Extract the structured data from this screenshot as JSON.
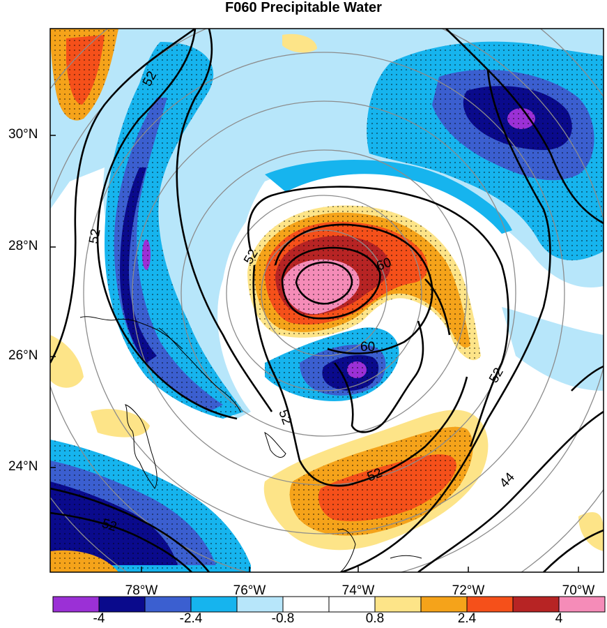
{
  "title": "F060 Precipitable Water",
  "map": {
    "lat_labels": [
      "30°N",
      "28°N",
      "26°N",
      "24°N"
    ],
    "lon_labels": [
      "78°W",
      "76°W",
      "74°W",
      "72°W",
      "70°W"
    ],
    "contour_labels": [
      "52",
      "52",
      "52",
      "60",
      "60",
      "52",
      "52",
      "52",
      "44",
      "52"
    ]
  },
  "colorbar": {
    "colors": [
      "#9b30d6",
      "#0a0a8c",
      "#3b5fd0",
      "#16b4ee",
      "#b7e6fa",
      "#ffffff",
      "#ffffff",
      "#fde488",
      "#f5a31a",
      "#f5501a",
      "#b72424",
      "#f58cb8"
    ],
    "labels": [
      "-4",
      "-2.4",
      "-0.8",
      "0.8",
      "2.4",
      "4"
    ]
  }
}
